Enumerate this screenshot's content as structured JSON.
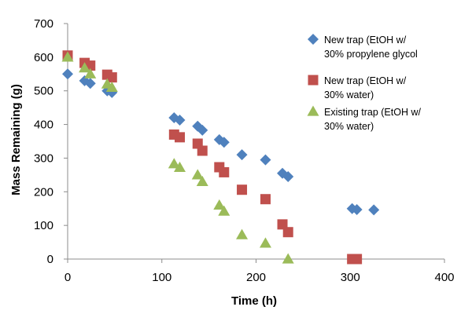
{
  "chart_data": {
    "type": "scatter",
    "title": "",
    "xlabel": "Time (h)",
    "ylabel": "Mass Remaining (g)",
    "xlim": [
      0,
      400
    ],
    "ylim": [
      0,
      700
    ],
    "xticks": [
      0,
      100,
      200,
      300,
      400
    ],
    "yticks": [
      0,
      100,
      200,
      300,
      400,
      500,
      600,
      700
    ],
    "grid": false,
    "legend_position": "top-right",
    "series": [
      {
        "name": "New trap (EtOH w/ 30% propylene glycol",
        "legend_lines": [
          "New trap (EtOH w/",
          "30% propylene glycol"
        ],
        "marker": "diamond",
        "color": "#4F81BD",
        "x": [
          0,
          18,
          24,
          42,
          47,
          113,
          119,
          138,
          143,
          161,
          166,
          185,
          210,
          228,
          234,
          302,
          307,
          325
        ],
        "y": [
          550,
          530,
          522,
          500,
          495,
          420,
          413,
          395,
          383,
          355,
          347,
          310,
          295,
          255,
          245,
          150,
          147,
          146
        ]
      },
      {
        "name": "New trap (EtOH w/ 30% water)",
        "legend_lines": [
          "New trap (EtOH w/",
          "30% water)"
        ],
        "marker": "square",
        "color": "#C0504D",
        "x": [
          0,
          18,
          24,
          42,
          47,
          113,
          119,
          138,
          143,
          161,
          166,
          185,
          210,
          228,
          234,
          302,
          307
        ],
        "y": [
          605,
          583,
          575,
          548,
          540,
          370,
          362,
          343,
          322,
          273,
          258,
          206,
          178,
          103,
          80,
          0,
          0
        ]
      },
      {
        "name": "Existing trap (EtOH w/ 30% water)",
        "legend_lines": [
          "Existing trap (EtOH w/",
          "30% water)"
        ],
        "marker": "triangle",
        "color": "#9BBB59",
        "x": [
          0,
          18,
          24,
          42,
          47,
          113,
          119,
          138,
          143,
          161,
          166,
          185,
          210,
          234
        ],
        "y": [
          600,
          568,
          550,
          520,
          510,
          283,
          272,
          250,
          230,
          160,
          142,
          72,
          47,
          0
        ]
      }
    ]
  }
}
